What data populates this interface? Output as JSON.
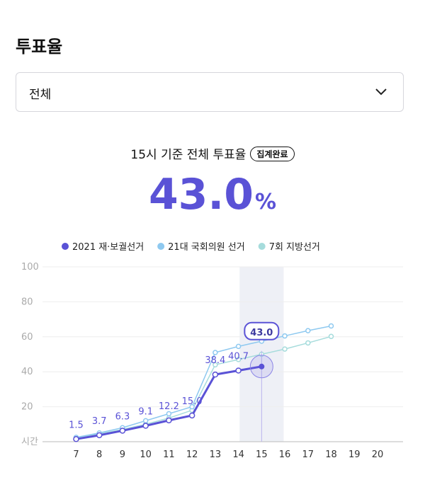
{
  "header": {
    "title": "투표율",
    "dropdown": "전체",
    "subtitle": "15시 기준 전체 투표율",
    "badge": "집계완료",
    "headline": "43.0",
    "unit": "%"
  },
  "chart_data": {
    "type": "line",
    "x": [
      7,
      8,
      9,
      10,
      11,
      12,
      13,
      14,
      15,
      16,
      17,
      18
    ],
    "xlim": [
      5,
      21.1
    ],
    "xticks": [
      7,
      8,
      9,
      10,
      11,
      12,
      13,
      14,
      15,
      16,
      17,
      18,
      19,
      20
    ],
    "ylim": [
      0,
      100
    ],
    "yticks": [
      {
        "value": 0,
        "label": "시간"
      },
      20,
      40,
      60,
      80,
      100
    ],
    "grid": true,
    "legend": "top",
    "highlight_x": 15,
    "series": [
      {
        "name": "2021 재·보궐선거",
        "color": "#5a52d6",
        "values": [
          1.5,
          3.7,
          6.3,
          9.1,
          12.2,
          15.0,
          38.4,
          40.7,
          43.0,
          null,
          null,
          null
        ],
        "value_labels": [
          "1.5",
          "3.7",
          "6.3",
          "9.1",
          "12.2",
          "15.0",
          "38.4",
          "40.7",
          "43.0",
          null,
          null,
          null
        ]
      },
      {
        "name": "21대 국회의원 선거",
        "color": "#8ec9f0",
        "values": [
          2.5,
          5,
          8,
          12,
          16,
          20,
          51,
          54.5,
          57.5,
          60.5,
          63.5,
          66.2
        ]
      },
      {
        "name": "7회 지방선거",
        "color": "#a6dcdc",
        "values": [
          2,
          4.5,
          7,
          10,
          13.5,
          18,
          44,
          47,
          50,
          53,
          56.5,
          60.2
        ]
      }
    ]
  }
}
